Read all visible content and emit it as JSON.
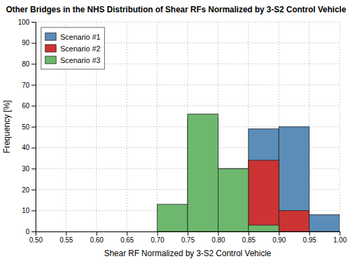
{
  "chart_data": {
    "type": "histogram",
    "title": "Other Bridges in the NHS Distribution of Shear RFs Normalized by 3-S2 Control Vehicle",
    "x_label": "Shear RF Normalized by 3-S2 Control Vehicle",
    "y_label": "Frequency [%]",
    "xlim": [
      0.5,
      1.0
    ],
    "ylim": [
      0,
      100
    ],
    "xticks": [
      {
        "value": 0.5,
        "label": "0.50"
      },
      {
        "value": 0.55,
        "label": "0.55"
      },
      {
        "value": 0.6,
        "label": "0.60"
      },
      {
        "value": 0.65,
        "label": "0.65"
      },
      {
        "value": 0.7,
        "label": "0.70"
      },
      {
        "value": 0.75,
        "label": "0.75"
      },
      {
        "value": 0.8,
        "label": "0.80"
      },
      {
        "value": 0.85,
        "label": "0.85"
      },
      {
        "value": 0.9,
        "label": "0.90"
      },
      {
        "value": 0.95,
        "label": "0.95"
      },
      {
        "value": 1.0,
        "label": "1.00"
      }
    ],
    "yticks": [
      0,
      10,
      20,
      30,
      40,
      50,
      60,
      70,
      80,
      90,
      100
    ],
    "grid": true,
    "legend": "upper left",
    "series": [
      {
        "name": "Scenario #1",
        "color": "#5b8db8",
        "bins": [
          0.85,
          0.9,
          0.95,
          1.0
        ],
        "values": [
          49,
          50,
          8
        ]
      },
      {
        "name": "Scenario #2",
        "color": "#cc3333",
        "bins": [
          0.75,
          0.8,
          0.85,
          0.9,
          0.95
        ],
        "values": [
          54,
          30,
          34,
          10
        ]
      },
      {
        "name": "Scenario #3",
        "color": "#6db86d",
        "bins": [
          0.7,
          0.75,
          0.8,
          0.85,
          0.9
        ],
        "values": [
          13,
          56,
          30,
          3
        ]
      }
    ]
  }
}
